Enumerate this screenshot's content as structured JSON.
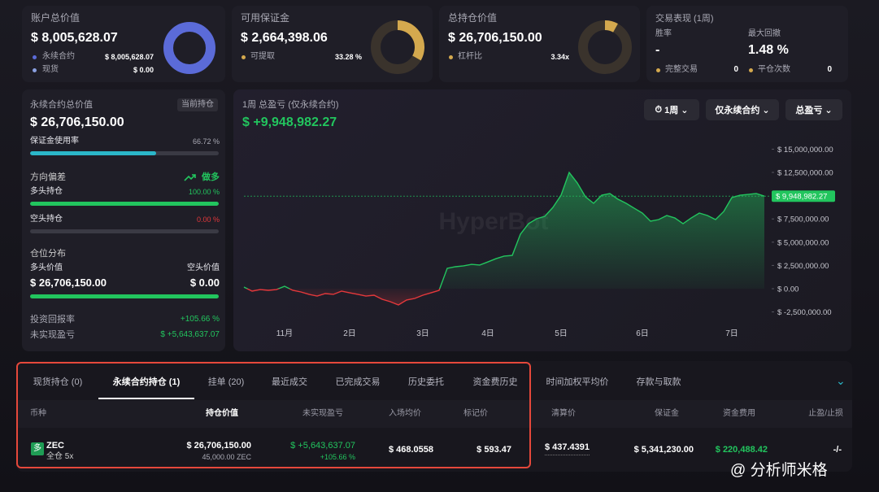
{
  "summary": {
    "account": {
      "title": "账户总价值",
      "value": "$ 8,005,628.07",
      "items": [
        {
          "label": "永续合约",
          "value": "$ 8,005,628.07"
        },
        {
          "label": "现货",
          "value": "$ 0.00"
        }
      ]
    },
    "margin": {
      "title": "可用保证金",
      "value": "$ 2,664,398.06",
      "item_label": "可提取",
      "pct": 33.28,
      "pct_label": "33.28 %"
    },
    "position": {
      "title": "总持仓价值",
      "value": "$ 26,706,150.00",
      "item_label": "杠杆比",
      "item_value": "3.34x"
    },
    "performance": {
      "title": "交易表现 (1周)",
      "win_rate_label": "胜率",
      "win_rate": "-",
      "drawdown_label": "最大回撤",
      "drawdown": "1.48 %",
      "trades_label": "完整交易",
      "trades": "0",
      "closes_label": "平仓次数",
      "closes": "0"
    }
  },
  "perp": {
    "title": "永续合约总价值",
    "badge": "当前持仓",
    "value": "$ 26,706,150.00",
    "margin_usage": {
      "label": "保证金使用率",
      "value": 66.72,
      "value_label": "66.72 %"
    },
    "bias_label": "方向偏差",
    "bias": "做多",
    "long": {
      "label": "多头持仓",
      "value": 100.0,
      "value_label": "100.00 %"
    },
    "short": {
      "label": "空头持仓",
      "value": 0.0,
      "value_label": "0.00 %"
    },
    "dist_label": "仓位分布",
    "long_value_label": "多头价值",
    "short_value_label": "空头价值",
    "long_value": "$ 26,706,150.00",
    "short_value": "$ 0.00",
    "roi_label": "投资回报率",
    "roi": "+105.66 %",
    "upnl_label": "未实现盈亏",
    "upnl": "$ +5,643,637.07"
  },
  "chart": {
    "type": "area",
    "title": "1周 总盈亏 (仅永续合约)",
    "pnl": "$ +9,948,982.27",
    "controls": [
      "1周",
      "仅永续合约",
      "总盈亏"
    ],
    "watermark": "HyperBot",
    "categories": [
      null,
      null,
      null,
      null,
      null,
      "11月",
      null,
      null,
      null,
      null,
      null,
      null,
      null,
      "2日",
      null,
      null,
      null,
      null,
      null,
      null,
      null,
      null,
      "3日",
      null,
      null,
      null,
      null,
      null,
      null,
      null,
      "4日",
      null,
      null,
      null,
      null,
      null,
      null,
      null,
      null,
      "5日",
      null,
      null,
      null,
      null,
      null,
      null,
      null,
      null,
      null,
      "6日",
      null,
      null,
      null,
      null,
      null,
      null,
      null,
      null,
      null,
      null,
      "7日",
      null,
      null,
      null,
      null
    ],
    "values": [
      175000,
      -260000,
      -90000,
      -175000,
      -90000,
      260000,
      -175000,
      -350000,
      -610000,
      -790000,
      -525000,
      -610000,
      -260000,
      -440000,
      -610000,
      -790000,
      -700000,
      -1140000,
      -1400000,
      -1750000,
      -1220000,
      -1050000,
      -700000,
      -440000,
      -175000,
      2190000,
      2360000,
      2450000,
      2620000,
      2540000,
      2880000,
      3230000,
      3500000,
      3580000,
      5860000,
      6990000,
      7520000,
      7780000,
      8740000,
      10050000,
      12500000,
      11360000,
      9880000,
      9180000,
      10050000,
      10230000,
      9620000,
      9180000,
      8650000,
      8130000,
      7260000,
      7430000,
      7870000,
      7600000,
      6990000,
      7600000,
      8130000,
      7870000,
      7430000,
      8300000,
      9790000,
      10050000,
      10140000,
      10230000,
      9948982.27
    ],
    "last_value_label": "$ 9,948,982.27",
    "ylim": [
      -3900000,
      16200000
    ],
    "yticks": [
      {
        "value": 15000000,
        "label": "$ 15,000,000.00"
      },
      {
        "value": 12500000,
        "label": "$ 12,500,000.00"
      },
      {
        "value": 10000000,
        "label": "$ 10,000,000.00"
      },
      {
        "value": 7500000,
        "label": "$ 7,500,000.00"
      },
      {
        "value": 5000000,
        "label": "$ 5,000,000.00"
      },
      {
        "value": 2500000,
        "label": "$ 2,500,000.00"
      },
      {
        "value": 0,
        "label": "$ 0.00"
      },
      {
        "value": -2500000,
        "label": "$ -2,500,000.00"
      }
    ],
    "colors": {
      "positive": "#22c55e",
      "negative": "#e5383b"
    }
  },
  "tabs": [
    "现货持仓 (0)",
    "永续合约持仓 (1)",
    "挂单 (20)",
    "最近成交",
    "已完成交易",
    "历史委托",
    "资金费历史",
    "时间加权平均价",
    "存款与取款"
  ],
  "table": {
    "headers": [
      "币种",
      "持仓价值",
      "未实现盈亏",
      "入场均价",
      "标记价",
      "清算价",
      "保证金",
      "资金费用",
      "止盈/止损"
    ],
    "row": {
      "side": "多",
      "coin": "ZEC",
      "mode": "全仓 5x",
      "value": "$ 26,706,150.00",
      "size": "45,000.00 ZEC",
      "upnl": "$ +5,643,637.07",
      "roe": "+105.66 %",
      "entry": "$ 468.0558",
      "mark": "$ 593.47",
      "liq": "$ 437.4391",
      "margin": "$ 5,341,230.00",
      "funding": "$ 220,488.42",
      "tpsl": "-/-"
    }
  },
  "watermark": "@ 分析师米格"
}
